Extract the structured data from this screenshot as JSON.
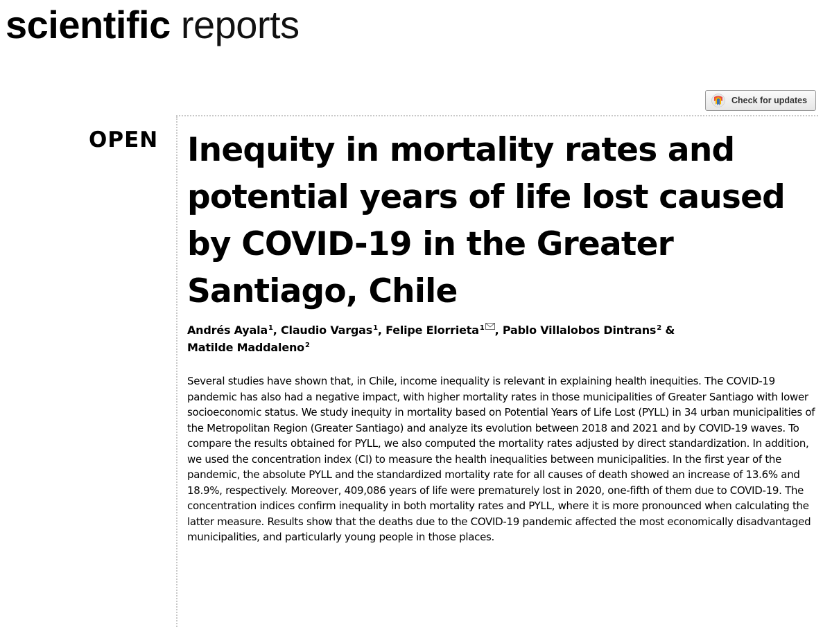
{
  "journal": {
    "name_bold": "scientific",
    "name_light": "reports"
  },
  "check_updates": {
    "label": "Check for updates",
    "icon": "crossmark-icon"
  },
  "article": {
    "access_label": "OPEN",
    "title": "Inequity in mortality rates and potential years of life lost caused by COVID-19 in the Greater Santiago, Chile",
    "authors": [
      {
        "name": "Andrés Ayala",
        "aff": "1",
        "separator": ", "
      },
      {
        "name": "Claudio Vargas",
        "aff": "1",
        "separator": ", "
      },
      {
        "name": "Felipe Elorrieta",
        "aff": "1",
        "corresponding": true,
        "separator": ", "
      },
      {
        "name": "Pablo Villalobos Dintrans",
        "aff": "2",
        "separator": " & "
      },
      {
        "name": "Matilde Maddaleno",
        "aff": "2",
        "separator": ""
      }
    ],
    "abstract": "Several studies have shown that, in Chile, income inequality is relevant in explaining health inequities. The COVID-19 pandemic has also had a negative impact, with higher mortality rates in those municipalities of Greater Santiago with lower socioeconomic status. We study inequity in mortality based on Potential Years of Life Lost (PYLL) in 34 urban municipalities of the Metropolitan Region (Greater Santiago) and analyze its evolution between 2018 and 2021 and by COVID-19 waves. To compare the results obtained for PYLL, we also computed the mortality rates adjusted by direct standardization. In addition, we used the concentration index (CI) to measure the health inequalities between municipalities. In the first year of the pandemic, the absolute PYLL and the standardized mortality rate for all causes of death showed an increase of 13.6% and 18.9%, respectively. Moreover, 409,086 years of life were prematurely lost in 2020, one-fifth of them due to COVID-19. The concentration indices confirm inequality in both mortality rates and PYLL, where it is more pronounced when calculating the latter measure. Results show that the deaths due to the COVID-19 pandemic affected the most economically disadvantaged municipalities, and particularly young people in those places."
  }
}
